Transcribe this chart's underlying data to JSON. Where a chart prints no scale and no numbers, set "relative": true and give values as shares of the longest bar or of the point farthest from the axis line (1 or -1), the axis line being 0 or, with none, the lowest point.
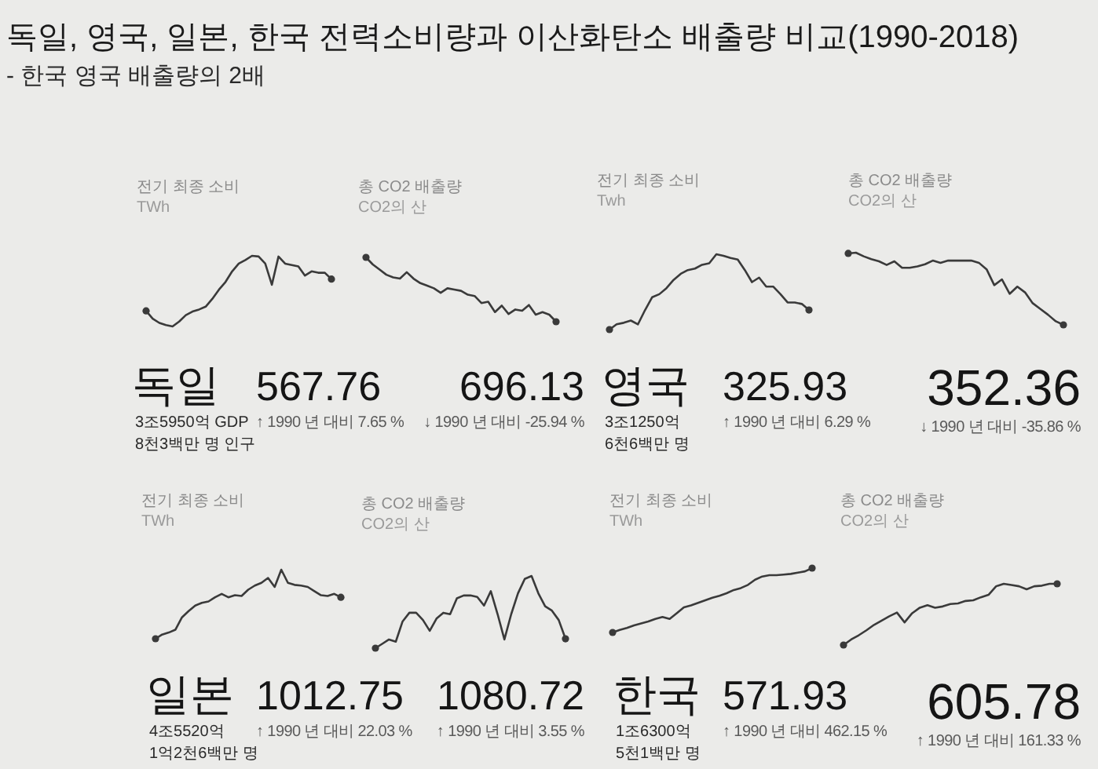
{
  "chart_data": [
    {
      "type": "other",
      "title": "독일, 영국, 일본, 한국 전력소비량과 이산화탄소 배출량 비교(1990-2018)",
      "subtitle": "- 한국 영국 배출량의 2배"
    },
    {
      "type": "line",
      "title": "전기 최종 소비",
      "subtitle": "TWh",
      "categories": [
        null,
        null,
        null,
        null,
        null,
        null,
        null,
        null,
        null,
        null,
        null,
        null,
        null,
        null,
        null,
        null,
        null,
        null,
        null,
        null,
        null,
        null,
        null,
        null,
        null,
        null,
        null,
        null,
        null
      ],
      "values": [
        0.22,
        0.11,
        0.05,
        0.02,
        0,
        0.07,
        0.16,
        0.21,
        0.24,
        0.28,
        0.39,
        0.52,
        0.63,
        0.78,
        0.89,
        0.94,
        1,
        0.99,
        0.89,
        0.59,
        0.99,
        0.89,
        0.87,
        0.85,
        0.72,
        0.78,
        0.76,
        0.76,
        0.67
      ],
      "relative": true,
      "color": "#3a3a3a",
      "annotations": [
        "567.76",
        "↑ 1990 년 대비 7.65 %"
      ]
    },
    {
      "type": "line",
      "title": "총 CO2 배출량",
      "subtitle": "CO2의 산",
      "categories": [
        null,
        null,
        null,
        null,
        null,
        null,
        null,
        null,
        null,
        null,
        null,
        null,
        null,
        null,
        null,
        null,
        null,
        null,
        null,
        null,
        null,
        null,
        null,
        null,
        null,
        null,
        null,
        null,
        null
      ],
      "values": [
        1,
        0.89,
        0.81,
        0.73,
        0.69,
        0.67,
        0.77,
        0.67,
        0.6,
        0.56,
        0.52,
        0.45,
        0.52,
        0.5,
        0.48,
        0.42,
        0.4,
        0.29,
        0.31,
        0.15,
        0.25,
        0.12,
        0.19,
        0.17,
        0.26,
        0.11,
        0.15,
        0.11,
        0
      ],
      "relative": true,
      "color": "#3a3a3a",
      "annotations": [
        "696.13",
        "↓ 1990 년 대비 -25.94 %"
      ]
    },
    {
      "type": "other",
      "title": "독일",
      "annotations": [
        "3조5950억 GDP",
        "8천3백만 명 인구"
      ]
    },
    {
      "type": "line",
      "title": "전기 최종 소비",
      "subtitle": "Twh",
      "categories": [
        null,
        null,
        null,
        null,
        null,
        null,
        null,
        null,
        null,
        null,
        null,
        null,
        null,
        null,
        null,
        null,
        null,
        null,
        null,
        null,
        null,
        null,
        null,
        null,
        null,
        null,
        null,
        null,
        null
      ],
      "values": [
        0,
        0.07,
        0.09,
        0.12,
        0.07,
        0.26,
        0.43,
        0.47,
        0.55,
        0.66,
        0.74,
        0.79,
        0.81,
        0.86,
        0.88,
        1,
        0.98,
        0.95,
        0.93,
        0.79,
        0.63,
        0.69,
        0.57,
        0.57,
        0.47,
        0.36,
        0.36,
        0.34,
        0.26
      ],
      "relative": true,
      "color": "#3a3a3a",
      "annotations": [
        "325.93",
        "↑ 1990 년 대비 6.29 %"
      ]
    },
    {
      "type": "line",
      "title": "총 CO2 배출량",
      "subtitle": "CO2의 산",
      "categories": [
        null,
        null,
        null,
        null,
        null,
        null,
        null,
        null,
        null,
        null,
        null,
        null,
        null,
        null,
        null,
        null,
        null,
        null,
        null,
        null,
        null,
        null,
        null,
        null,
        null,
        null,
        null,
        null,
        null
      ],
      "values": [
        0.99,
        1,
        0.95,
        0.91,
        0.88,
        0.83,
        0.88,
        0.79,
        0.79,
        0.81,
        0.84,
        0.89,
        0.86,
        0.89,
        0.89,
        0.89,
        0.89,
        0.86,
        0.77,
        0.55,
        0.63,
        0.43,
        0.53,
        0.45,
        0.3,
        0.22,
        0.14,
        0.05,
        0
      ],
      "relative": true,
      "color": "#3a3a3a",
      "annotations": [
        "352.36",
        "↓ 1990 년 대비 -35.86 %"
      ]
    },
    {
      "type": "other",
      "title": "영국",
      "annotations": [
        "3조1250억",
        "6천6백만 명"
      ]
    },
    {
      "type": "line",
      "title": "전기 최종 소비",
      "subtitle": "TWh",
      "categories": [
        null,
        null,
        null,
        null,
        null,
        null,
        null,
        null,
        null,
        null,
        null,
        null,
        null,
        null,
        null,
        null,
        null,
        null,
        null,
        null,
        null,
        null,
        null,
        null,
        null,
        null,
        null,
        null,
        null
      ],
      "values": [
        0,
        0.06,
        0.09,
        0.13,
        0.31,
        0.4,
        0.48,
        0.52,
        0.54,
        0.6,
        0.65,
        0.6,
        0.63,
        0.62,
        0.71,
        0.77,
        0.81,
        0.88,
        0.75,
        1,
        0.81,
        0.78,
        0.77,
        0.75,
        0.69,
        0.63,
        0.62,
        0.65,
        0.6
      ],
      "relative": true,
      "color": "#3a3a3a",
      "annotations": [
        "1012.75",
        "↑ 1990 년 대비 22.03 %"
      ]
    },
    {
      "type": "line",
      "title": "총 CO2 배출량",
      "subtitle": "CO2의 산",
      "categories": [
        null,
        null,
        null,
        null,
        null,
        null,
        null,
        null,
        null,
        null,
        null,
        null,
        null,
        null,
        null,
        null,
        null,
        null,
        null,
        null,
        null,
        null,
        null,
        null,
        null,
        null,
        null,
        null,
        null
      ],
      "values": [
        0,
        0.06,
        0.12,
        0.09,
        0.37,
        0.49,
        0.49,
        0.39,
        0.24,
        0.41,
        0.49,
        0.47,
        0.69,
        0.73,
        0.73,
        0.71,
        0.59,
        0.79,
        0.47,
        0.12,
        0.47,
        0.76,
        0.96,
        1,
        0.76,
        0.58,
        0.52,
        0.39,
        0.13
      ],
      "relative": true,
      "color": "#3a3a3a",
      "annotations": [
        "1080.72",
        "↑ 1990 년 대비 3.55 %"
      ]
    },
    {
      "type": "other",
      "title": "일본",
      "annotations": [
        "4조5520억",
        "1억2천6백만 명"
      ]
    },
    {
      "type": "line",
      "title": "전기 최종 소비",
      "subtitle": "TWh",
      "categories": [
        null,
        null,
        null,
        null,
        null,
        null,
        null,
        null,
        null,
        null,
        null,
        null,
        null,
        null,
        null,
        null,
        null,
        null,
        null,
        null,
        null,
        null,
        null,
        null,
        null,
        null,
        null,
        null,
        null
      ],
      "values": [
        0,
        0.04,
        0.07,
        0.11,
        0.14,
        0.17,
        0.21,
        0.24,
        0.21,
        0.3,
        0.39,
        0.42,
        0.46,
        0.5,
        0.54,
        0.57,
        0.61,
        0.66,
        0.69,
        0.74,
        0.82,
        0.87,
        0.89,
        0.89,
        0.9,
        0.91,
        0.93,
        0.95,
        1
      ],
      "relative": true,
      "color": "#3a3a3a",
      "annotations": [
        "571.93",
        "↑ 1990 년 대비 462.15 %"
      ]
    },
    {
      "type": "line",
      "title": "총 CO2 배출량",
      "subtitle": "CO2의 산",
      "categories": [
        null,
        null,
        null,
        null,
        null,
        null,
        null,
        null,
        null,
        null,
        null,
        null,
        null,
        null,
        null,
        null,
        null,
        null,
        null,
        null,
        null,
        null,
        null,
        null,
        null,
        null,
        null,
        null,
        null
      ],
      "values": [
        0,
        0.09,
        0.16,
        0.24,
        0.33,
        0.4,
        0.47,
        0.53,
        0.37,
        0.52,
        0.61,
        0.65,
        0.61,
        0.63,
        0.67,
        0.68,
        0.72,
        0.73,
        0.78,
        0.82,
        0.96,
        1,
        0.98,
        0.96,
        0.91,
        0.96,
        0.97,
        1,
        1
      ],
      "relative": true,
      "color": "#3a3a3a",
      "annotations": [
        "605.78",
        "↑ 1990 년 대비 161.33 %"
      ]
    },
    {
      "type": "other",
      "title": "한국",
      "annotations": [
        "1조6300억",
        "5천1백만 명"
      ]
    }
  ]
}
